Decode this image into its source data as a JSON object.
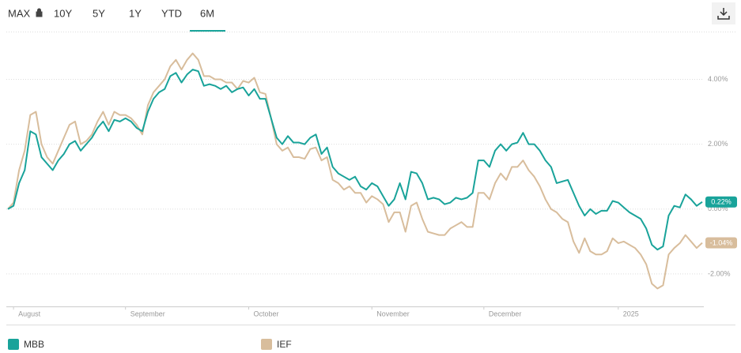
{
  "tabs": {
    "labels": [
      "MAX",
      "10Y",
      "5Y",
      "1Y",
      "YTD",
      "6M"
    ],
    "active": 5
  },
  "chart_data": {
    "type": "line",
    "xlim": [
      0,
      124
    ],
    "xticks": [
      {
        "value": 1,
        "label": "August"
      },
      {
        "value": 21,
        "label": "September"
      },
      {
        "value": 43,
        "label": "October"
      },
      {
        "value": 65,
        "label": "November"
      },
      {
        "value": 85,
        "label": "December"
      },
      {
        "value": 109,
        "label": "2025"
      }
    ],
    "ylim": [
      -3,
      5.35
    ],
    "yticks": [
      {
        "value": -2,
        "label": "-2.00%"
      },
      {
        "value": 0,
        "label": "0.00%"
      },
      {
        "value": 2,
        "label": "2.00%"
      },
      {
        "value": 4,
        "label": "4.00%"
      }
    ],
    "grid": true,
    "legend": "bottom",
    "series": [
      {
        "name": "MBB",
        "color": "#19a39a",
        "end_label": "0.22%",
        "values": [
          0,
          0.1,
          0.8,
          1.2,
          2.4,
          2.3,
          1.6,
          1.4,
          1.2,
          1.5,
          1.7,
          2.0,
          2.1,
          1.8,
          2.0,
          2.2,
          2.5,
          2.7,
          2.4,
          2.75,
          2.7,
          2.8,
          2.7,
          2.5,
          2.4,
          3.0,
          3.4,
          3.6,
          3.7,
          4.1,
          4.2,
          3.9,
          4.15,
          4.3,
          4.25,
          3.8,
          3.85,
          3.8,
          3.7,
          3.8,
          3.6,
          3.7,
          3.75,
          3.5,
          3.7,
          3.4,
          3.4,
          2.8,
          2.2,
          2.0,
          2.25,
          2.05,
          2.05,
          2.0,
          2.2,
          2.3,
          1.7,
          1.9,
          1.3,
          1.1,
          1.0,
          0.9,
          1.0,
          0.7,
          0.6,
          0.8,
          0.7,
          0.4,
          0.1,
          0.3,
          0.8,
          0.3,
          1.15,
          1.1,
          0.8,
          0.3,
          0.35,
          0.3,
          0.15,
          0.2,
          0.35,
          0.3,
          0.35,
          0.5,
          1.5,
          1.5,
          1.3,
          1.8,
          2.0,
          1.8,
          2.0,
          2.05,
          2.35,
          2.0,
          2.0,
          1.8,
          1.5,
          1.3,
          0.8,
          0.85,
          0.9,
          0.5,
          0.1,
          -0.2,
          0.0,
          -0.15,
          -0.05,
          -0.05,
          0.25,
          0.2,
          0.05,
          -0.1,
          -0.2,
          -0.3,
          -0.6,
          -1.1,
          -1.25,
          -1.15,
          -0.2,
          0.1,
          0.05,
          0.45,
          0.3,
          0.1,
          0.22
        ]
      },
      {
        "name": "IEF",
        "color": "#d8bd9c",
        "end_label": "-1.04%",
        "values": [
          0,
          0.2,
          1.2,
          1.8,
          2.9,
          3.0,
          2.0,
          1.6,
          1.4,
          1.8,
          2.2,
          2.6,
          2.7,
          2.0,
          2.1,
          2.3,
          2.7,
          3.0,
          2.6,
          3.0,
          2.9,
          2.9,
          2.8,
          2.6,
          2.3,
          3.2,
          3.6,
          3.8,
          4.0,
          4.4,
          4.6,
          4.3,
          4.6,
          4.8,
          4.6,
          4.1,
          4.1,
          4.0,
          4.0,
          3.9,
          3.9,
          3.7,
          3.95,
          3.9,
          4.05,
          3.6,
          3.55,
          2.8,
          2.0,
          1.8,
          1.9,
          1.6,
          1.6,
          1.55,
          1.85,
          1.9,
          1.5,
          1.6,
          0.9,
          0.8,
          0.6,
          0.7,
          0.5,
          0.5,
          0.2,
          0.4,
          0.3,
          0.15,
          -0.4,
          -0.1,
          -0.1,
          -0.7,
          0.1,
          0.2,
          -0.3,
          -0.7,
          -0.75,
          -0.8,
          -0.8,
          -0.6,
          -0.5,
          -0.4,
          -0.55,
          -0.55,
          0.5,
          0.5,
          0.3,
          0.8,
          1.1,
          0.9,
          1.3,
          1.3,
          1.5,
          1.2,
          1.0,
          0.7,
          0.3,
          0.0,
          -0.1,
          -0.3,
          -0.4,
          -1.0,
          -1.35,
          -0.9,
          -1.3,
          -1.4,
          -1.4,
          -1.3,
          -0.9,
          -1.05,
          -1.0,
          -1.1,
          -1.2,
          -1.4,
          -1.7,
          -2.3,
          -2.45,
          -2.35,
          -1.4,
          -1.2,
          -1.05,
          -0.8,
          -1.0,
          -1.2,
          -1.04
        ]
      }
    ]
  }
}
